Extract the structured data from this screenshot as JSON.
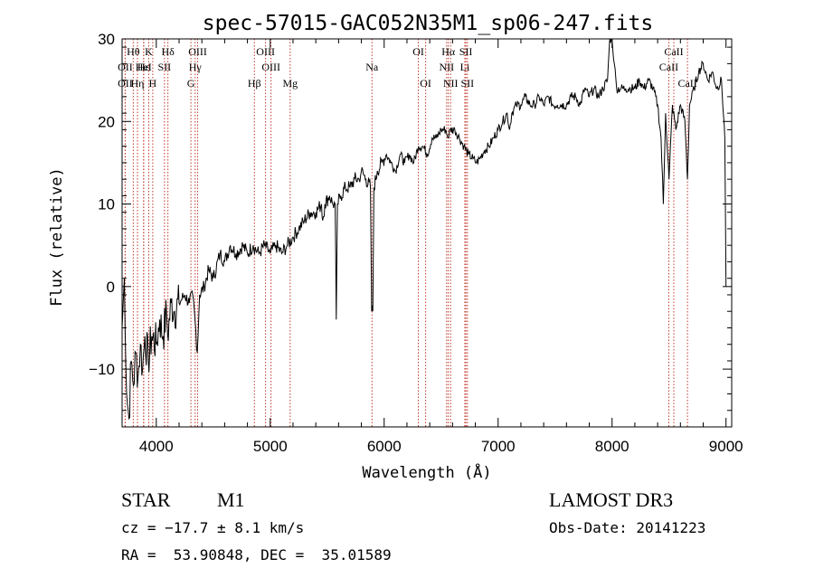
{
  "chart_data": {
    "type": "line",
    "title": "spec-57015-GAC052N35M1_sp06-247.fits",
    "xlabel": "Wavelength (Å)",
    "ylabel": "Flux (relative)",
    "xlim": [
      3700,
      9050
    ],
    "ylim": [
      -17,
      30
    ],
    "xticks": [
      4000,
      5000,
      6000,
      7000,
      8000,
      9000
    ],
    "yticks": [
      -10,
      0,
      10,
      20,
      30
    ],
    "series": [
      {
        "name": "spectrum",
        "points": [
          [
            3700,
            -5
          ],
          [
            3720,
            1
          ],
          [
            3740,
            -13
          ],
          [
            3760,
            -16
          ],
          [
            3780,
            -9
          ],
          [
            3800,
            -12
          ],
          [
            3820,
            -8
          ],
          [
            3840,
            -11
          ],
          [
            3860,
            -7
          ],
          [
            3880,
            -10
          ],
          [
            3900,
            -6
          ],
          [
            3930,
            -9
          ],
          [
            3960,
            -6
          ],
          [
            4000,
            -7
          ],
          [
            4030,
            -4
          ],
          [
            4060,
            -6
          ],
          [
            4090,
            -3
          ],
          [
            4100,
            -6
          ],
          [
            4130,
            -2
          ],
          [
            4160,
            -3
          ],
          [
            4200,
            -2
          ],
          [
            4250,
            -1
          ],
          [
            4290,
            -2
          ],
          [
            4320,
            -1
          ],
          [
            4340,
            -4
          ],
          [
            4360,
            -8
          ],
          [
            4380,
            -1
          ],
          [
            4420,
            0
          ],
          [
            4460,
            2
          ],
          [
            4500,
            1
          ],
          [
            4560,
            4
          ],
          [
            4600,
            3
          ],
          [
            4650,
            5
          ],
          [
            4700,
            4
          ],
          [
            4760,
            5
          ],
          [
            4800,
            4
          ],
          [
            4850,
            5
          ],
          [
            4900,
            4
          ],
          [
            4950,
            5
          ],
          [
            5000,
            4
          ],
          [
            5050,
            5
          ],
          [
            5100,
            4
          ],
          [
            5150,
            5
          ],
          [
            5200,
            6
          ],
          [
            5250,
            7
          ],
          [
            5300,
            8
          ],
          [
            5350,
            9
          ],
          [
            5400,
            9
          ],
          [
            5450,
            10
          ],
          [
            5460,
            8
          ],
          [
            5480,
            10
          ],
          [
            5520,
            11
          ],
          [
            5550,
            10
          ],
          [
            5570,
            10
          ],
          [
            5580,
            -4
          ],
          [
            5590,
            10
          ],
          [
            5620,
            11
          ],
          [
            5660,
            12
          ],
          [
            5700,
            12
          ],
          [
            5740,
            13
          ],
          [
            5780,
            13
          ],
          [
            5800,
            14
          ],
          [
            5840,
            13
          ],
          [
            5880,
            12
          ],
          [
            5890,
            -3
          ],
          [
            5900,
            -3
          ],
          [
            5910,
            12
          ],
          [
            5940,
            14
          ],
          [
            5980,
            15
          ],
          [
            6020,
            16
          ],
          [
            6060,
            15
          ],
          [
            6100,
            14
          ],
          [
            6140,
            16
          ],
          [
            6180,
            15
          ],
          [
            6220,
            16
          ],
          [
            6260,
            15
          ],
          [
            6300,
            17
          ],
          [
            6340,
            17
          ],
          [
            6380,
            16
          ],
          [
            6420,
            18
          ],
          [
            6460,
            18
          ],
          [
            6500,
            19
          ],
          [
            6540,
            19
          ],
          [
            6560,
            18
          ],
          [
            6580,
            19
          ],
          [
            6620,
            19
          ],
          [
            6660,
            18
          ],
          [
            6700,
            17
          ],
          [
            6740,
            16
          ],
          [
            6780,
            15.5
          ],
          [
            6810,
            15
          ],
          [
            6840,
            15.5
          ],
          [
            6880,
            16.5
          ],
          [
            6920,
            17
          ],
          [
            6960,
            18
          ],
          [
            7000,
            19
          ],
          [
            7040,
            20
          ],
          [
            7080,
            21
          ],
          [
            7100,
            19
          ],
          [
            7120,
            21
          ],
          [
            7160,
            22
          ],
          [
            7200,
            22
          ],
          [
            7240,
            23
          ],
          [
            7280,
            22
          ],
          [
            7320,
            22
          ],
          [
            7360,
            23
          ],
          [
            7400,
            22
          ],
          [
            7440,
            23
          ],
          [
            7480,
            22
          ],
          [
            7520,
            22
          ],
          [
            7560,
            22
          ],
          [
            7600,
            22
          ],
          [
            7640,
            23
          ],
          [
            7680,
            23
          ],
          [
            7720,
            22
          ],
          [
            7760,
            24
          ],
          [
            7800,
            23
          ],
          [
            7840,
            24
          ],
          [
            7880,
            23
          ],
          [
            7920,
            24
          ],
          [
            7960,
            25
          ],
          [
            7980,
            30
          ],
          [
            8000,
            30
          ],
          [
            8020,
            27
          ],
          [
            8040,
            24
          ],
          [
            8080,
            24
          ],
          [
            8120,
            24
          ],
          [
            8160,
            24
          ],
          [
            8200,
            24
          ],
          [
            8240,
            25
          ],
          [
            8280,
            24
          ],
          [
            8320,
            25
          ],
          [
            8360,
            24
          ],
          [
            8400,
            22
          ],
          [
            8430,
            18
          ],
          [
            8450,
            10
          ],
          [
            8470,
            21
          ],
          [
            8500,
            13
          ],
          [
            8530,
            22
          ],
          [
            8560,
            19
          ],
          [
            8600,
            22
          ],
          [
            8640,
            20
          ],
          [
            8662,
            13
          ],
          [
            8680,
            22
          ],
          [
            8720,
            24
          ],
          [
            8760,
            26
          ],
          [
            8800,
            27
          ],
          [
            8840,
            25
          ],
          [
            8880,
            26
          ],
          [
            8920,
            24
          ],
          [
            8960,
            25
          ],
          [
            8990,
            18
          ],
          [
            9000,
            0
          ]
        ]
      }
    ],
    "line_markers": [
      {
        "label": "Hθ",
        "x": 3798,
        "row": 1
      },
      {
        "label": "OII",
        "x": 3727,
        "row": 2
      },
      {
        "label": "OII",
        "x": 3727,
        "row": 3
      },
      {
        "label": "Hε",
        "x": 3889,
        "row": 2
      },
      {
        "label": "Hη",
        "x": 3835,
        "row": 3
      },
      {
        "label": "K",
        "x": 3934,
        "row": 1
      },
      {
        "label": "HeI",
        "x": 3889,
        "row": 2
      },
      {
        "label": "H",
        "x": 3969,
        "row": 3
      },
      {
        "label": "Hδ",
        "x": 4102,
        "row": 1
      },
      {
        "label": "SII",
        "x": 4072,
        "row": 2
      },
      {
        "label": "OIII",
        "x": 4363,
        "row": 1
      },
      {
        "label": "Hγ",
        "x": 4341,
        "row": 2
      },
      {
        "label": "G",
        "x": 4304,
        "row": 3
      },
      {
        "label": "Hβ",
        "x": 4861,
        "row": 3
      },
      {
        "label": "OIII",
        "x": 4959,
        "row": 1
      },
      {
        "label": "OIII",
        "x": 5007,
        "row": 2
      },
      {
        "label": "Mg",
        "x": 5175,
        "row": 3
      },
      {
        "label": "Na",
        "x": 5893,
        "row": 2
      },
      {
        "label": "OI",
        "x": 6300,
        "row": 1
      },
      {
        "label": "OI",
        "x": 6364,
        "row": 3
      },
      {
        "label": "Hα",
        "x": 6563,
        "row": 1
      },
      {
        "label": "NII",
        "x": 6548,
        "row": 2
      },
      {
        "label": "NII",
        "x": 6583,
        "row": 3
      },
      {
        "label": "SII",
        "x": 6717,
        "row": 1
      },
      {
        "label": "Li",
        "x": 6708,
        "row": 2
      },
      {
        "label": "SII",
        "x": 6731,
        "row": 3
      },
      {
        "label": "CaII",
        "x": 8542,
        "row": 1
      },
      {
        "label": "CaII",
        "x": 8498,
        "row": 2
      },
      {
        "label": "CaII",
        "x": 8662,
        "row": 3
      }
    ]
  },
  "info": {
    "object_class": "STAR",
    "subclass": "M1",
    "survey": "LAMOST DR3",
    "redshift": "cz = −17.7 ± 8.1 km/s",
    "obs_date": "Obs-Date: 20141223",
    "coords": "RA =  53.90848, DEC =  35.01589"
  }
}
